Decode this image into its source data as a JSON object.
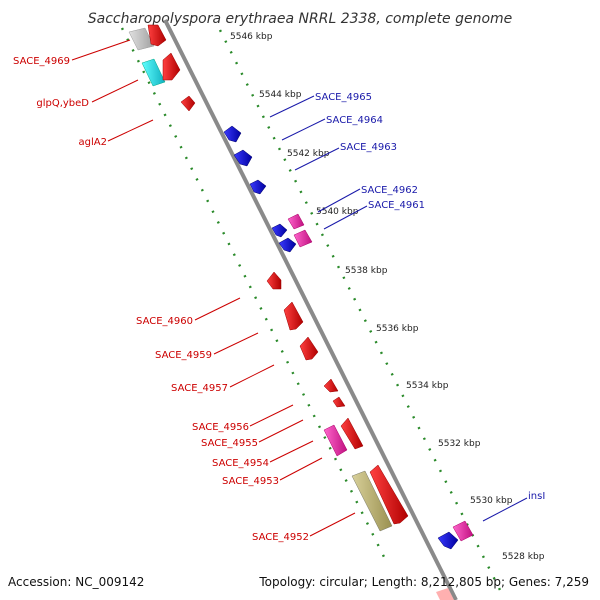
{
  "title": "Saccharopolyspora erythraea NRRL 2338, complete genome",
  "footer": {
    "accession": "Accession: NC_009142",
    "summary": "Topology: circular; Length: 8,212,805 bp; Genes: 7,259"
  },
  "colors": {
    "backbone": "#8a8a8a",
    "guides": "#2a8a2a",
    "reverse_label": "#cc0000",
    "forward_label": "#1a1aaa"
  },
  "ticks": [
    "5546 kbp",
    "5544 kbp",
    "5542 kbp",
    "5540 kbp",
    "5538 kbp",
    "5536 kbp",
    "5534 kbp",
    "5532 kbp",
    "5530 kbp",
    "5528 kbp"
  ],
  "reverse_labels": [
    "SACE_4969",
    "glpQ,ybeD",
    "aglA2",
    "SACE_4960",
    "SACE_4959",
    "SACE_4957",
    "SACE_4956",
    "SACE_4955",
    "SACE_4954",
    "SACE_4953",
    "SACE_4952"
  ],
  "forward_labels": [
    "SACE_4965",
    "SACE_4964",
    "SACE_4963",
    "SACE_4962",
    "SACE_4961",
    "insI"
  ]
}
